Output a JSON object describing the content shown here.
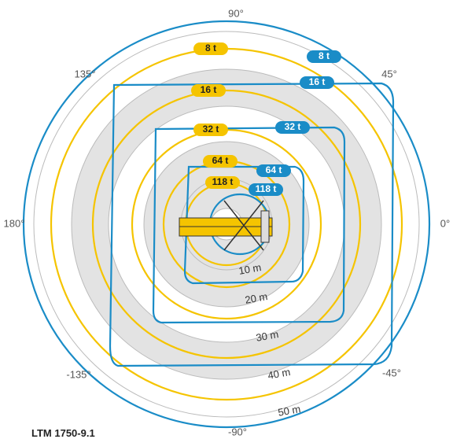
{
  "angles": [
    "90°",
    "45°",
    "0°",
    "-45°",
    "-90°",
    "-135°",
    "180°",
    "135°"
  ],
  "yellow_loads": [
    "8 t",
    "16 t",
    "32 t",
    "64 t",
    "118 t"
  ],
  "blue_loads": [
    "8 t",
    "16 t",
    "32 t",
    "64 t",
    "118 t"
  ],
  "radii": [
    "10 m",
    "20 m",
    "30 m",
    "40 m",
    "50 m"
  ],
  "model": "LTM 1750-9.1"
}
